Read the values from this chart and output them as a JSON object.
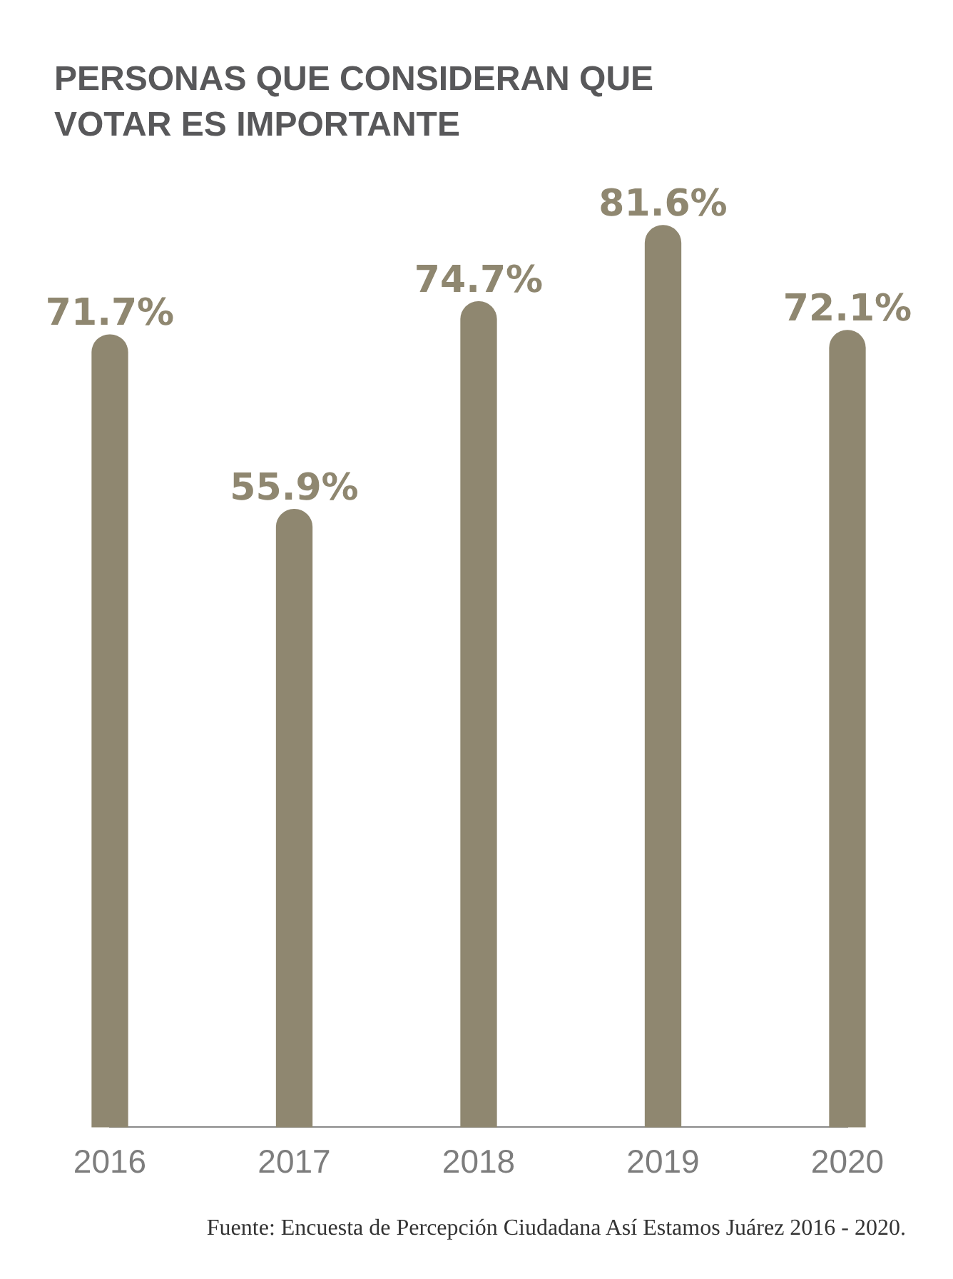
{
  "chart_data": {
    "type": "bar",
    "title": "PERSONAS QUE CONSIDERAN QUE VOTAR ES IMPORTANTE",
    "categories": [
      "2016",
      "2017",
      "2018",
      "2019",
      "2020"
    ],
    "values": [
      71.7,
      55.9,
      74.7,
      81.6,
      72.1
    ],
    "value_labels": [
      "71.7%",
      "55.9%",
      "74.7%",
      "81.6%",
      "72.1%"
    ],
    "color": "#8f8770",
    "grid": false,
    "legend": false,
    "annotations": [
      "Fuente: Encuesta de Percepción Ciudadana Así Estamos Juárez 2016 - 2020."
    ]
  }
}
